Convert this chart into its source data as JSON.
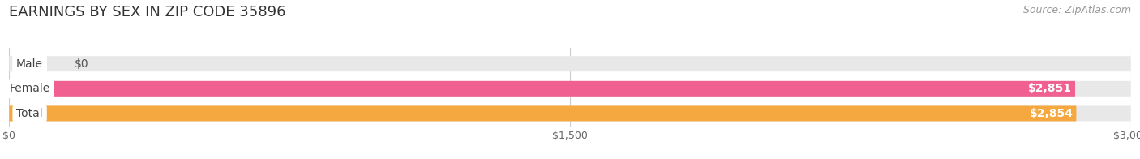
{
  "title": "EARNINGS BY SEX IN ZIP CODE 35896",
  "source": "Source: ZipAtlas.com",
  "categories": [
    "Male",
    "Female",
    "Total"
  ],
  "values": [
    0,
    2851,
    2854
  ],
  "bar_colors": [
    "#a8c8e8",
    "#f06090",
    "#f5a840"
  ],
  "bar_bg_color": "#e8e8e8",
  "xlim": [
    0,
    3000
  ],
  "xticks": [
    0,
    1500,
    3000
  ],
  "xtick_labels": [
    "$0",
    "$1,500",
    "$3,000"
  ],
  "value_labels": [
    "$0",
    "$2,851",
    "$2,854"
  ],
  "bar_height": 0.62,
  "background_color": "#ffffff",
  "title_fontsize": 13,
  "label_fontsize": 10,
  "tick_fontsize": 9,
  "source_fontsize": 9
}
